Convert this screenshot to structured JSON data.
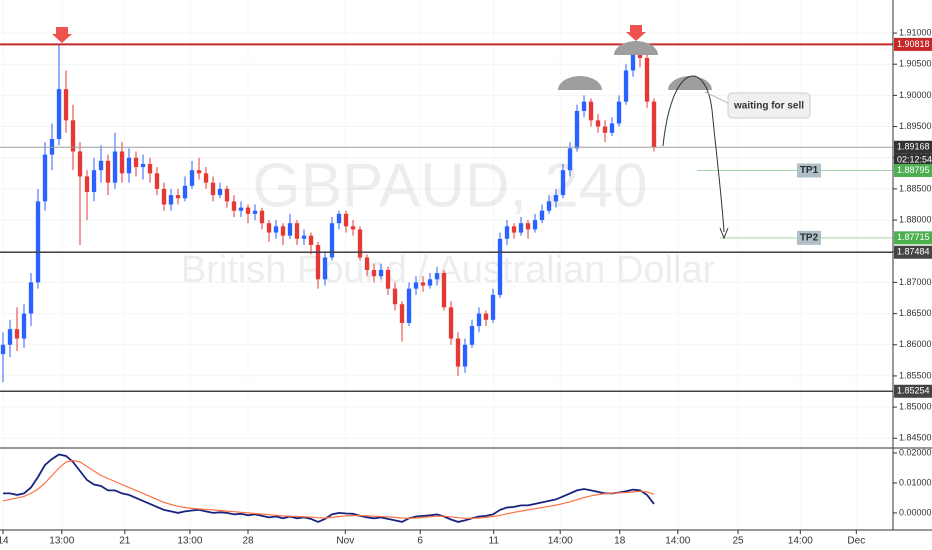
{
  "chart_data": [
    {
      "type": "candlestick",
      "symbol": "GBPAUD, 240",
      "description": "British Pound / Australian Dollar",
      "up_color": "#2962ff",
      "down_color": "#e53935",
      "xlim": [
        -0.43,
        127.14
      ],
      "ylim": [
        1.8436,
        1.9153
      ],
      "xticks": [
        {
          "value": 0,
          "label": "14"
        },
        {
          "value": 8.4,
          "label": "13:00"
        },
        {
          "value": 17.4,
          "label": "21"
        },
        {
          "value": 26.7,
          "label": "13:00"
        },
        {
          "value": 35,
          "label": "28"
        },
        {
          "value": 48.9,
          "label": "Nov"
        },
        {
          "value": 59.6,
          "label": "6"
        },
        {
          "value": 70.1,
          "label": "11"
        },
        {
          "value": 79.6,
          "label": "14:00"
        },
        {
          "value": 88.1,
          "label": "18"
        },
        {
          "value": 96.4,
          "label": "14:00"
        },
        {
          "value": 105,
          "label": "25"
        },
        {
          "value": 113.9,
          "label": "14:00"
        },
        {
          "value": 121.9,
          "label": "Dec"
        }
      ],
      "yticks": [
        {
          "value": 1.91,
          "label": "1.91000"
        },
        {
          "value": 1.905,
          "label": "1.90500"
        },
        {
          "value": 1.9,
          "label": "1.90000"
        },
        {
          "value": 1.895,
          "label": "1.89500"
        },
        {
          "value": 1.89,
          "label": "1.89000"
        },
        {
          "value": 1.885,
          "label": "1.88500"
        },
        {
          "value": 1.88,
          "label": "1.88000"
        },
        {
          "value": 1.875,
          "label": "1.87500"
        },
        {
          "value": 1.87,
          "label": "1.87000"
        },
        {
          "value": 1.865,
          "label": "1.86500"
        },
        {
          "value": 1.86,
          "label": "1.86000"
        },
        {
          "value": 1.855,
          "label": "1.85500"
        },
        {
          "value": 1.85,
          "label": "1.85000"
        },
        {
          "value": 1.845,
          "label": "1.84500"
        }
      ],
      "levels": [
        {
          "value": 1.90818,
          "color": "#c62828"
        },
        {
          "value": 1.89168,
          "color": "#333333"
        },
        {
          "value": 1.88795,
          "color": "#4caf50",
          "label": "TP1"
        },
        {
          "value": 1.87715,
          "color": "#4caf50",
          "label": "TP2"
        },
        {
          "value": 1.87484,
          "color": "#444444"
        },
        {
          "value": 1.85254,
          "color": "#444444"
        }
      ],
      "countdown": "02:12:54",
      "note": "waiting for sell",
      "open": [
        1.8585,
        1.86,
        1.8625,
        1.861,
        1.865,
        1.87,
        1.883,
        1.8905,
        1.893,
        1.901,
        1.896,
        1.891,
        1.887,
        1.8845,
        1.888,
        1.8895,
        1.886,
        1.891,
        1.8875,
        1.89,
        1.8885,
        1.889,
        1.8875,
        1.885,
        1.8825,
        1.884,
        1.8835,
        1.8855,
        1.888,
        1.8875,
        1.886,
        1.884,
        1.885,
        1.883,
        1.8815,
        1.882,
        1.881,
        1.8815,
        1.8795,
        1.878,
        1.879,
        1.8775,
        1.8795,
        1.877,
        1.8775,
        1.876,
        1.8705,
        1.874,
        1.8795,
        1.881,
        1.879,
        1.8785,
        1.874,
        1.872,
        1.871,
        1.872,
        1.869,
        1.8665,
        1.8635,
        1.869,
        1.87,
        1.8695,
        1.8705,
        1.8715,
        1.866,
        1.861,
        1.8565,
        1.86,
        1.863,
        1.865,
        1.864,
        1.868,
        1.877,
        1.879,
        1.878,
        1.8795,
        1.8785,
        1.88,
        1.8815,
        1.883,
        1.884,
        1.888,
        1.8915,
        1.8975,
        1.899,
        1.896,
        1.895,
        1.894,
        1.8955,
        1.899,
        1.904,
        1.907,
        1.906,
        1.899
      ],
      "high": [
        1.862,
        1.864,
        1.866,
        1.8665,
        1.8715,
        1.885,
        1.8925,
        1.8955,
        1.9082,
        1.904,
        1.8985,
        1.8925,
        1.888,
        1.89,
        1.892,
        1.8905,
        1.894,
        1.8925,
        1.8915,
        1.891,
        1.8905,
        1.89,
        1.8885,
        1.886,
        1.885,
        1.885,
        1.887,
        1.8895,
        1.89,
        1.8885,
        1.887,
        1.886,
        1.8855,
        1.884,
        1.883,
        1.8825,
        1.8825,
        1.882,
        1.88,
        1.88,
        1.8795,
        1.881,
        1.88,
        1.8785,
        1.878,
        1.8765,
        1.875,
        1.8805,
        1.8815,
        1.8815,
        1.88,
        1.879,
        1.8745,
        1.873,
        1.873,
        1.8725,
        1.87,
        1.867,
        1.87,
        1.871,
        1.871,
        1.8715,
        1.8725,
        1.872,
        1.867,
        1.862,
        1.861,
        1.864,
        1.866,
        1.8655,
        1.869,
        1.878,
        1.88,
        1.8795,
        1.8805,
        1.88,
        1.881,
        1.8825,
        1.884,
        1.885,
        1.889,
        1.8925,
        1.8985,
        1.9,
        1.8995,
        1.897,
        1.896,
        1.8965,
        1.9,
        1.905,
        1.9082,
        1.9078,
        1.9065,
        1.8995
      ],
      "low": [
        1.854,
        1.858,
        1.859,
        1.8595,
        1.863,
        1.869,
        1.8815,
        1.888,
        1.892,
        1.894,
        1.888,
        1.876,
        1.88,
        1.883,
        1.886,
        1.884,
        1.885,
        1.886,
        1.886,
        1.887,
        1.8865,
        1.886,
        1.884,
        1.8815,
        1.8815,
        1.8825,
        1.883,
        1.885,
        1.8865,
        1.885,
        1.883,
        1.8835,
        1.882,
        1.8805,
        1.8805,
        1.8795,
        1.88,
        1.8785,
        1.8765,
        1.877,
        1.876,
        1.877,
        1.876,
        1.876,
        1.8745,
        1.869,
        1.8695,
        1.8735,
        1.8785,
        1.878,
        1.8775,
        1.8735,
        1.871,
        1.87,
        1.8705,
        1.868,
        1.8655,
        1.8605,
        1.863,
        1.868,
        1.8685,
        1.869,
        1.8695,
        1.8655,
        1.86,
        1.855,
        1.8555,
        1.8595,
        1.862,
        1.863,
        1.8635,
        1.8675,
        1.876,
        1.877,
        1.8775,
        1.877,
        1.878,
        1.8795,
        1.881,
        1.882,
        1.8835,
        1.887,
        1.891,
        1.8965,
        1.895,
        1.894,
        1.8925,
        1.8935,
        1.895,
        1.8985,
        1.903,
        1.9045,
        1.898,
        1.891
      ],
      "close": [
        1.86,
        1.8625,
        1.861,
        1.865,
        1.87,
        1.883,
        1.8905,
        1.893,
        1.901,
        1.896,
        1.891,
        1.887,
        1.8845,
        1.888,
        1.8895,
        1.886,
        1.891,
        1.8875,
        1.89,
        1.8885,
        1.889,
        1.8875,
        1.885,
        1.8825,
        1.884,
        1.8835,
        1.8855,
        1.888,
        1.8875,
        1.886,
        1.884,
        1.885,
        1.883,
        1.8815,
        1.882,
        1.881,
        1.8815,
        1.8795,
        1.878,
        1.879,
        1.8775,
        1.8795,
        1.877,
        1.8775,
        1.876,
        1.8705,
        1.874,
        1.8795,
        1.881,
        1.879,
        1.8785,
        1.874,
        1.872,
        1.871,
        1.872,
        1.869,
        1.8665,
        1.8635,
        1.869,
        1.87,
        1.8695,
        1.8705,
        1.8715,
        1.866,
        1.861,
        1.8565,
        1.86,
        1.863,
        1.865,
        1.864,
        1.868,
        1.877,
        1.879,
        1.878,
        1.8795,
        1.8785,
        1.88,
        1.8815,
        1.883,
        1.884,
        1.888,
        1.8915,
        1.8975,
        1.899,
        1.896,
        1.895,
        1.894,
        1.8955,
        1.899,
        1.904,
        1.907,
        1.906,
        1.899,
        1.8917
      ]
    },
    {
      "type": "line",
      "ylim": [
        -0.0057,
        0.021
      ],
      "yticks": [
        {
          "value": 0.02,
          "label": "0.02000"
        },
        {
          "value": 0.01,
          "label": "0.01000"
        },
        {
          "value": 0,
          "label": "0.00000"
        }
      ],
      "series": [
        {
          "color": "#1a237e",
          "values": [
            0.0065,
            0.0065,
            0.006,
            0.0065,
            0.0085,
            0.012,
            0.016,
            0.018,
            0.0195,
            0.019,
            0.017,
            0.014,
            0.011,
            0.0095,
            0.009,
            0.0075,
            0.0075,
            0.0065,
            0.006,
            0.005,
            0.004,
            0.003,
            0.002,
            0.001,
            0.0005,
            0,
            0.0005,
            0.0008,
            0.001,
            0.0005,
            0,
            0.0002,
            0,
            -0.0005,
            -0.0003,
            -0.0008,
            -0.0005,
            -0.001,
            -0.0015,
            -0.0012,
            -0.0018,
            -0.0012,
            -0.0018,
            -0.0015,
            -0.002,
            -0.003,
            -0.002,
            -0.0005,
            0,
            -0.0002,
            -0.0003,
            -0.001,
            -0.0015,
            -0.0018,
            -0.0015,
            -0.002,
            -0.0025,
            -0.003,
            -0.0018,
            -0.0012,
            -0.001,
            -0.0008,
            -0.0005,
            -0.0012,
            -0.0022,
            -0.003,
            -0.0025,
            -0.0018,
            -0.0012,
            -0.001,
            -0.0005,
            0.001,
            0.0018,
            0.002,
            0.0025,
            0.0025,
            0.003,
            0.0035,
            0.004,
            0.0045,
            0.0055,
            0.0065,
            0.0075,
            0.008,
            0.0075,
            0.007,
            0.0065,
            0.0065,
            0.0068,
            0.0072,
            0.0078,
            0.0075,
            0.006,
            0.003
          ]
        },
        {
          "color": "#ff7043",
          "values": [
            0.004,
            0.0045,
            0.005,
            0.0055,
            0.0065,
            0.008,
            0.01,
            0.0125,
            0.015,
            0.017,
            0.0175,
            0.017,
            0.0155,
            0.014,
            0.0125,
            0.0115,
            0.0105,
            0.0095,
            0.0085,
            0.0075,
            0.0065,
            0.0055,
            0.0045,
            0.0035,
            0.0028,
            0.0022,
            0.0018,
            0.0015,
            0.0013,
            0.0012,
            0.001,
            0.0008,
            0.0006,
            0.0004,
            0.0002,
            0,
            -0.0002,
            -0.0004,
            -0.0006,
            -0.0008,
            -0.001,
            -0.0011,
            -0.0012,
            -0.0013,
            -0.0014,
            -0.0016,
            -0.0017,
            -0.0015,
            -0.0012,
            -0.001,
            -0.0009,
            -0.0009,
            -0.001,
            -0.0011,
            -0.0012,
            -0.0013,
            -0.0015,
            -0.0017,
            -0.0018,
            -0.0017,
            -0.0015,
            -0.0013,
            -0.0011,
            -0.0011,
            -0.0013,
            -0.0016,
            -0.0018,
            -0.0018,
            -0.0017,
            -0.0015,
            -0.0012,
            -0.0008,
            -0.0003,
            0.0002,
            0.0006,
            0.001,
            0.0014,
            0.0018,
            0.0022,
            0.0026,
            0.0031,
            0.0037,
            0.0044,
            0.0051,
            0.0057,
            0.0061,
            0.0064,
            0.0066,
            0.0067,
            0.0068,
            0.007,
            0.0072,
            0.007,
            0.0062
          ]
        }
      ]
    }
  ]
}
